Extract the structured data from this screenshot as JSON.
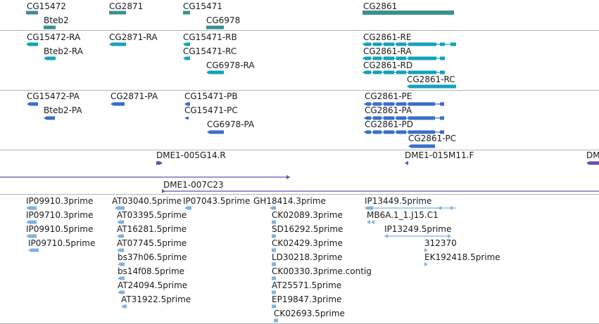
{
  "colors": {
    "gene": "#3a8f8f",
    "transcript": "#12a3ba",
    "protein": "#3a6fc9",
    "clone": "#6a4fa8",
    "est": "#7fb2dc"
  },
  "tracks": {
    "genes": {
      "labels": [
        "CG15472",
        "Bteb2",
        "CG2871",
        "CG15471",
        "CG6978",
        "CG2861"
      ]
    },
    "transcripts": {
      "labels": [
        "CG15472-RA",
        "Bteb2-RA",
        "CG2871-RA",
        "CG15471-RB",
        "CG15471-RC",
        "CG6978-RA",
        "CG2861-RE",
        "CG2861-RA",
        "CG2861-RD",
        "CG2861-RC"
      ]
    },
    "proteins": {
      "labels": [
        "CG15472-PA",
        "Bteb2-PA",
        "CG2871-PA",
        "CG15471-PB",
        "CG15471-PC",
        "CG6978-PA",
        "CG2861-PE",
        "CG2861-PA",
        "CG2861-PD",
        "CG2861-PC"
      ]
    },
    "clones": {
      "labels": [
        "DME1-005G14.R",
        "DME1-015M11.F",
        "DM",
        "DME1-007C23"
      ]
    },
    "ests": {
      "labels": [
        "IP09910.3prime",
        "IP09710.3prime",
        "IP09910.5prime",
        "IP09710.5prime",
        "AT03040.5prime",
        "AT03395.5prime",
        "AT16281.5prime",
        "AT07745.5prime",
        "bs37h06.5prime",
        "bs14f08.5prime",
        "AT24094.5prime",
        "AT31922.5prime",
        "IP07043.5prime",
        "GH18414.3prime",
        "CK02089.3prime",
        "SD16292.5prime",
        "CK02429.3prime",
        "LD30218.3prime",
        "CK00330.3prime.contig",
        "AT25571.5prime",
        "EP19847.3prime",
        "CK02693.5prime",
        "IP13449.5prime",
        "MB6A.1_1.J15.C1",
        "IP13249.5prime",
        "312370",
        "EK192418.5prime"
      ]
    }
  }
}
